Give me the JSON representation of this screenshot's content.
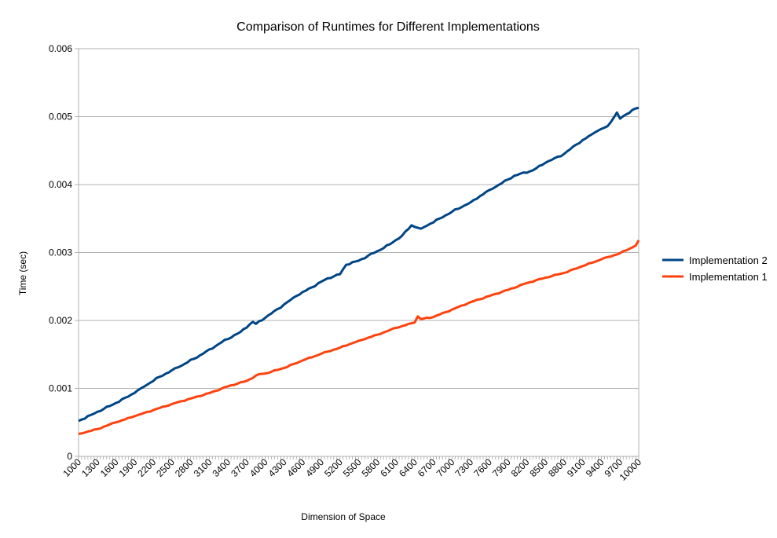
{
  "chart_data": {
    "type": "line",
    "title": "Comparison of Runtimes for Different Implementations",
    "xlabel": "Dimension of Space",
    "ylabel": "Time (sec)",
    "x_start": 1000,
    "x_end": 10000,
    "x_step": 50,
    "x_tick_labels": [
      "1000",
      "1300",
      "1600",
      "1900",
      "2200",
      "2500",
      "2800",
      "3100",
      "3400",
      "3700",
      "4000",
      "4300",
      "4600",
      "4900",
      "5200",
      "5500",
      "5800",
      "6100",
      "6400",
      "6700",
      "7000",
      "7300",
      "7600",
      "7900",
      "8200",
      "8500",
      "8800",
      "9100",
      "9400",
      "9700",
      "10000"
    ],
    "y_tick_labels": [
      "0",
      "0.001",
      "0.002",
      "0.003",
      "0.004",
      "0.005",
      "0.006"
    ],
    "ylim": [
      0,
      0.006
    ],
    "grid": "horizontal",
    "legend_position": "right",
    "series": [
      {
        "name": "Implementation 2",
        "color": "#004586",
        "anchors": [
          [
            1000,
            0.00052
          ],
          [
            1200,
            0.00061
          ],
          [
            1500,
            0.00074
          ],
          [
            1800,
            0.00088
          ],
          [
            2000,
            0.001
          ],
          [
            2300,
            0.00117
          ],
          [
            2600,
            0.00131
          ],
          [
            3000,
            0.00151
          ],
          [
            3300,
            0.00168
          ],
          [
            3600,
            0.00183
          ],
          [
            3800,
            0.00198
          ],
          [
            3850,
            0.00195
          ],
          [
            4000,
            0.00204
          ],
          [
            4500,
            0.00236
          ],
          [
            5000,
            0.00262
          ],
          [
            5200,
            0.00268
          ],
          [
            5300,
            0.00282
          ],
          [
            5500,
            0.00288
          ],
          [
            5800,
            0.00302
          ],
          [
            6000,
            0.00312
          ],
          [
            6200,
            0.00325
          ],
          [
            6350,
            0.0034
          ],
          [
            6500,
            0.00335
          ],
          [
            6800,
            0.0035
          ],
          [
            7000,
            0.0036
          ],
          [
            7300,
            0.00374
          ],
          [
            7600,
            0.00392
          ],
          [
            7800,
            0.00402
          ],
          [
            8000,
            0.00413
          ],
          [
            8300,
            0.00421
          ],
          [
            8500,
            0.00432
          ],
          [
            8800,
            0.00445
          ],
          [
            9000,
            0.00459
          ],
          [
            9300,
            0.00477
          ],
          [
            9500,
            0.00486
          ],
          [
            9650,
            0.00506
          ],
          [
            9700,
            0.00497
          ],
          [
            9900,
            0.0051
          ],
          [
            10000,
            0.00513
          ]
        ],
        "spikes": [
          [
            6350,
            0.0034
          ],
          [
            6700,
            0.00346
          ],
          [
            9650,
            0.00506
          ]
        ]
      },
      {
        "name": "Implementation 1",
        "color": "#ff420e",
        "anchors": [
          [
            1000,
            0.00033
          ],
          [
            1300,
            0.0004
          ],
          [
            1600,
            0.0005
          ],
          [
            1900,
            0.00059
          ],
          [
            2200,
            0.00068
          ],
          [
            2500,
            0.00077
          ],
          [
            2800,
            0.00085
          ],
          [
            3100,
            0.00093
          ],
          [
            3400,
            0.00103
          ],
          [
            3700,
            0.00111
          ],
          [
            3900,
            0.00121
          ],
          [
            4000,
            0.00122
          ],
          [
            4300,
            0.0013
          ],
          [
            4600,
            0.00141
          ],
          [
            4900,
            0.00151
          ],
          [
            5200,
            0.0016
          ],
          [
            5500,
            0.0017
          ],
          [
            5800,
            0.00179
          ],
          [
            6100,
            0.00189
          ],
          [
            6400,
            0.00197
          ],
          [
            6450,
            0.00206
          ],
          [
            6500,
            0.00202
          ],
          [
            6700,
            0.00205
          ],
          [
            7000,
            0.00216
          ],
          [
            7300,
            0.00227
          ],
          [
            7600,
            0.00236
          ],
          [
            7900,
            0.00245
          ],
          [
            8200,
            0.00255
          ],
          [
            8500,
            0.00263
          ],
          [
            8800,
            0.0027
          ],
          [
            9100,
            0.0028
          ],
          [
            9400,
            0.0029
          ],
          [
            9700,
            0.00299
          ],
          [
            9950,
            0.0031
          ],
          [
            10000,
            0.00318
          ]
        ],
        "spikes": [
          [
            6450,
            0.00206
          ]
        ]
      }
    ]
  }
}
